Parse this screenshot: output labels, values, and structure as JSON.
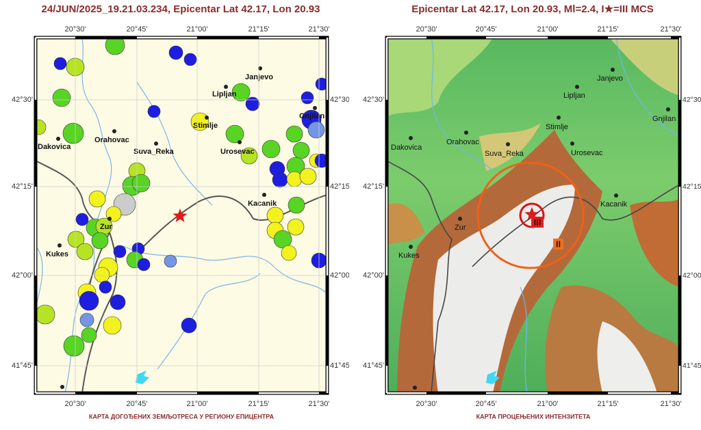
{
  "maps": [
    {
      "title": "24/JUN/2025_19.21.03.234, Epicentar Lat 42.17, Lon 20.93",
      "caption": "КАРТА ДОГОЂЕНИХ ЗЕМЉОТРЕСА У РЕГИОНУ ЕПИЦЕНТРА"
    },
    {
      "title": "Epicentar Lat 42.17, Lon 20.93, Ml=2.4, I★=III MCS",
      "caption": "КАРТА ПРОЦЕЊЕНИХ ИНТЕНЗИТЕТА",
      "intensity_labels": [
        "III",
        "II"
      ]
    }
  ],
  "lon_labels": [
    "20°30'",
    "20°45'",
    "21°00'",
    "21°15'",
    "21°30'"
  ],
  "lat_labels": [
    "42°30'",
    "42°15'",
    "42°00'",
    "41°45'"
  ],
  "cities": [
    "Janjevo",
    "Lipljan",
    "Gnjilan",
    "Stimlje",
    "Orahovac",
    "Dakovica",
    "Suva_Reka",
    "Urosevac",
    "Kacanik",
    "Zur",
    "Kukes"
  ]
}
